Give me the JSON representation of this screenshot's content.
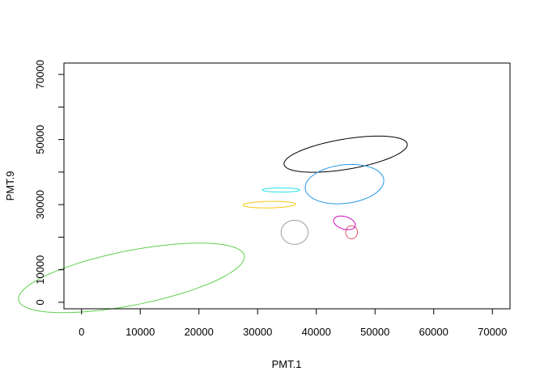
{
  "chart_data": {
    "type": "scatter",
    "xlabel": "PMT.1",
    "ylabel": "PMT.9",
    "xlim": [
      -3000,
      73000
    ],
    "ylim": [
      -2000,
      73500
    ],
    "x_ticks": [
      0,
      10000,
      20000,
      30000,
      40000,
      50000,
      60000,
      70000
    ],
    "y_ticks": [
      0,
      10000,
      30000,
      50000,
      70000
    ],
    "grid": false,
    "series": [
      {
        "color": "#000000",
        "center": [
          45000,
          45500
        ],
        "semi_axes": [
          11000,
          4500
        ],
        "angle_deg": 19
      },
      {
        "color": "#2297E6",
        "center": [
          44800,
          36300
        ],
        "semi_axes": [
          7000,
          5700
        ],
        "angle_deg": 30
      },
      {
        "color": "#28E2E5",
        "center": [
          34000,
          34500
        ],
        "semi_axes": [
          3200,
          650
        ],
        "angle_deg": 0
      },
      {
        "color": "#F5C710",
        "center": [
          32000,
          30000
        ],
        "semi_axes": [
          4500,
          1000
        ],
        "angle_deg": 2
      },
      {
        "color": "#9E9E9E",
        "center": [
          36300,
          21500
        ],
        "semi_axes": [
          2300,
          3700
        ],
        "angle_deg": 0
      },
      {
        "color": "#DF536B",
        "center": [
          46000,
          21500
        ],
        "semi_axes": [
          1000,
          2000
        ],
        "angle_deg": 0
      },
      {
        "color": "#CD0BBC",
        "center": [
          44800,
          24400
        ],
        "semi_axes": [
          1600,
          2300
        ],
        "angle_deg": 35
      },
      {
        "color": "#61D04F",
        "center": [
          8500,
          7500
        ],
        "semi_axes": [
          20500,
          8000
        ],
        "angle_deg": 22
      }
    ]
  }
}
